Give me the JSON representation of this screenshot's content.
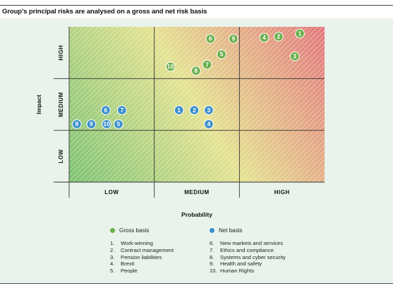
{
  "title": "Group’s principal risks are analysed on a gross and net risk basis",
  "colors": {
    "gross": "#6ab04c",
    "net": "#3a8fcc",
    "background": "#e9f3ec"
  },
  "chart_data": {
    "type": "scatter",
    "title": "Group’s principal risks are analysed on a gross and net risk basis",
    "xlabel": "Probability",
    "ylabel": "Impact",
    "x_categories": [
      "LOW",
      "MEDIUM",
      "HIGH"
    ],
    "y_categories": [
      "LOW",
      "MEDIUM",
      "HIGH"
    ],
    "xlim": [
      0,
      3
    ],
    "ylim": [
      0,
      3
    ],
    "grid": true,
    "series": [
      {
        "name": "Gross basis",
        "color": "#6ab04c",
        "points": [
          {
            "label": "1",
            "x": 2.71,
            "y": 2.87
          },
          {
            "label": "2",
            "x": 2.46,
            "y": 2.81
          },
          {
            "label": "3",
            "x": 2.65,
            "y": 2.43
          },
          {
            "label": "4",
            "x": 2.29,
            "y": 2.79
          },
          {
            "label": "5",
            "x": 1.79,
            "y": 2.47
          },
          {
            "label": "6",
            "x": 1.66,
            "y": 2.77
          },
          {
            "label": "7",
            "x": 1.62,
            "y": 2.27
          },
          {
            "label": "8",
            "x": 1.49,
            "y": 2.15
          },
          {
            "label": "9",
            "x": 1.93,
            "y": 2.77
          },
          {
            "label": "10",
            "x": 1.19,
            "y": 2.23
          }
        ]
      },
      {
        "name": "Net basis",
        "color": "#3a8fcc",
        "points": [
          {
            "label": "1",
            "x": 1.29,
            "y": 1.39
          },
          {
            "label": "2",
            "x": 1.47,
            "y": 1.39
          },
          {
            "label": "3",
            "x": 1.64,
            "y": 1.39
          },
          {
            "label": "4",
            "x": 1.64,
            "y": 1.12
          },
          {
            "label": "5",
            "x": 0.58,
            "y": 1.12
          },
          {
            "label": "6",
            "x": 0.43,
            "y": 1.39
          },
          {
            "label": "7",
            "x": 0.62,
            "y": 1.39
          },
          {
            "label": "8",
            "x": 0.09,
            "y": 1.12
          },
          {
            "label": "9",
            "x": 0.26,
            "y": 1.12
          },
          {
            "label": "10",
            "x": 0.44,
            "y": 1.12
          }
        ]
      }
    ]
  },
  "legend": {
    "gross_label": "Gross basis",
    "net_label": "Net basis"
  },
  "risks_left": [
    {
      "num": "1.",
      "text": "Work-winning"
    },
    {
      "num": "2.",
      "text": "Contract management"
    },
    {
      "num": "3.",
      "text": "Pension liabilities"
    },
    {
      "num": "4.",
      "text": "Brexit"
    },
    {
      "num": "5.",
      "text": "People"
    }
  ],
  "risks_right": [
    {
      "num": "6.",
      "text": "New markets and services"
    },
    {
      "num": "7.",
      "text": "Ethics and compliance"
    },
    {
      "num": "8.",
      "text": "Systems and cyber security"
    },
    {
      "num": "9.",
      "text": "Health and safety"
    },
    {
      "num": "10.",
      "text": "Human Rights"
    }
  ]
}
